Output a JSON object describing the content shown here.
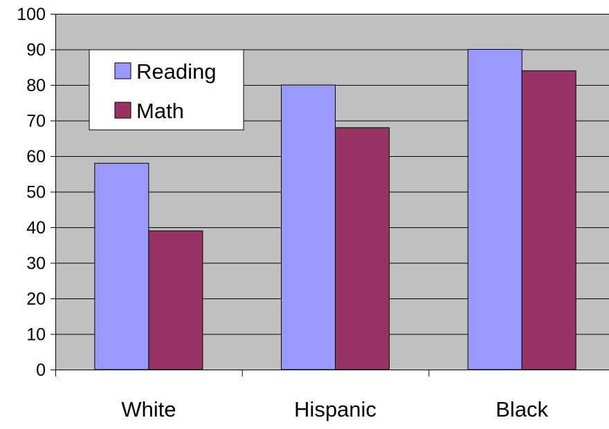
{
  "chart_data": {
    "type": "bar",
    "title": "",
    "xlabel": "",
    "ylabel": "",
    "categories": [
      "White",
      "Hispanic",
      "Black"
    ],
    "series": [
      {
        "name": "Reading",
        "values": [
          58,
          80,
          90
        ]
      },
      {
        "name": "Math",
        "values": [
          39,
          68,
          84
        ]
      }
    ],
    "ylim": [
      0,
      100
    ],
    "yticks": [
      "0",
      "10",
      "20",
      "30",
      "40",
      "50",
      "60",
      "70",
      "80",
      "90",
      "100"
    ],
    "grid": true,
    "legend_position": "top-left",
    "colors": {
      "plot_background": "#c0c0c0",
      "series": [
        "#9999ff",
        "#993366"
      ],
      "gridline": "#000000"
    }
  }
}
